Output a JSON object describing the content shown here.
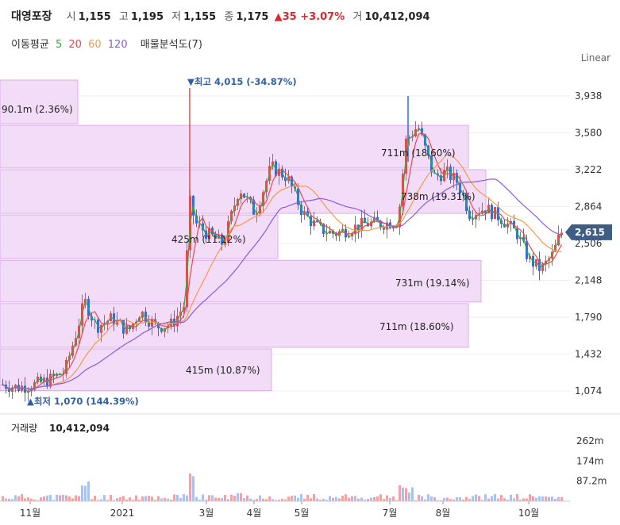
{
  "header": {
    "name": "대영포장",
    "open_label": "시",
    "open": "1,155",
    "high_label": "고",
    "high": "1,195",
    "low_label": "저",
    "low": "1,155",
    "close_label": "종",
    "close": "1,175",
    "change": "▲35 +3.07%",
    "volume_label": "거",
    "volume": "10,412,094"
  },
  "ma_legend": {
    "label": "이동평균",
    "ma5": "5",
    "ma20": "20",
    "ma60": "60",
    "ma120": "120",
    "profile": "매물분석도(7)"
  },
  "scale_mode": "Linear",
  "colors": {
    "up": "#e84a4f",
    "down": "#2f6fdb",
    "ma5": "#3aa640",
    "ma20": "#e84a4f",
    "ma60": "#f39a4c",
    "ma120": "#8a5be0",
    "profile": "#f3dcf8",
    "profile_edge": "#d9aee6"
  },
  "chart_data": {
    "type": "candlestick",
    "price_axis": {
      "ticks": [
        1074,
        1432,
        1790,
        2148,
        2506,
        2864,
        3222,
        3580,
        3938
      ],
      "labels": [
        "1,074",
        "1,432",
        "1,790",
        "2,148",
        "2,506",
        "2,864",
        "3,222",
        "3,580",
        "3,938"
      ],
      "range": [
        930,
        4200
      ]
    },
    "current_price": {
      "value": 2615,
      "label": "2,615"
    },
    "high_marker": {
      "value": 4015,
      "label": "▼최고 4,015 (-34.87%)"
    },
    "low_marker": {
      "value": 1070,
      "label": "▲최저 1,070 (144.39%)"
    },
    "x_axis_labels": [
      "11월",
      "2021",
      "3월",
      "4월",
      "5월",
      "7월",
      "8월",
      "10월"
    ],
    "volume_profile": [
      {
        "low": 1070,
        "high": 1490,
        "label": "415m (10.87%)"
      },
      {
        "low": 1490,
        "high": 1930,
        "label": "711m (18.60%)"
      },
      {
        "low": 1930,
        "high": 2350,
        "label": "731m (19.14%)"
      },
      {
        "low": 2350,
        "high": 2790,
        "label": "425m (11.12%)"
      },
      {
        "low": 2790,
        "high": 3230,
        "label": "738m (19.31%)"
      },
      {
        "low": 3230,
        "high": 3660,
        "label": "711m (18.60%)"
      },
      {
        "low": 3660,
        "high": 4100,
        "label": "90.1m (2.36%)"
      }
    ],
    "volume": {
      "label": "거래량",
      "value": "10,412,094",
      "ticks": [
        "262m",
        "174m",
        "87.2m"
      ],
      "tick_values": [
        262,
        174,
        87.2
      ]
    }
  }
}
